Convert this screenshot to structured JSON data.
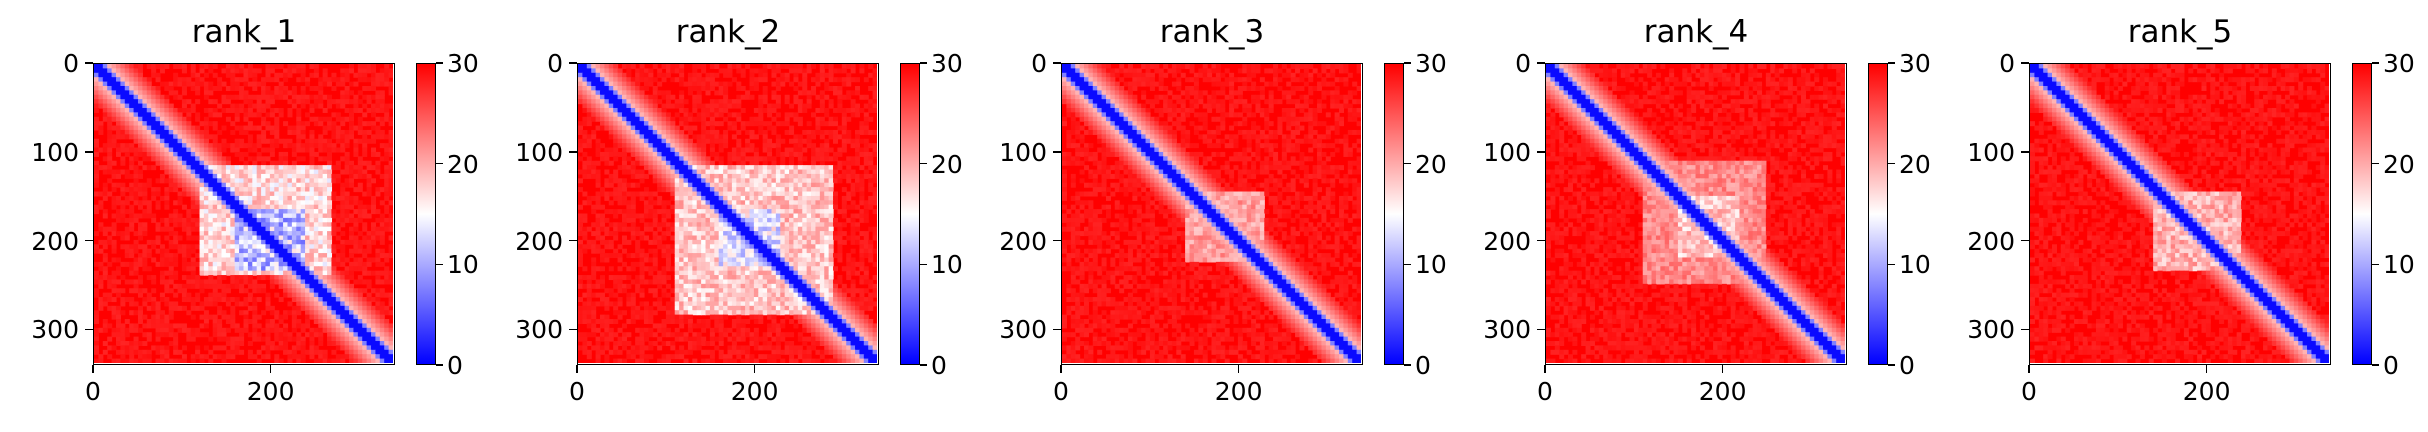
{
  "chart_data": [
    {
      "type": "heatmap",
      "title": "rank_1",
      "n": 340,
      "x_ticks": [
        0,
        200
      ],
      "y_ticks": [
        0,
        100,
        200,
        300
      ],
      "colorbar": {
        "min": 0,
        "max": 30,
        "ticks": [
          0,
          10,
          20,
          30
        ],
        "colormap": [
          "#0000ff",
          "#ffffff",
          "#ff0000"
        ]
      },
      "low_regions": [
        {
          "x_range": [
            120,
            270
          ],
          "y_range": [
            115,
            240
          ],
          "level": 0.55
        },
        {
          "x_range": [
            160,
            240
          ],
          "y_range": [
            165,
            235
          ],
          "level": 0.8
        }
      ]
    },
    {
      "type": "heatmap",
      "title": "rank_2",
      "n": 340,
      "x_ticks": [
        0,
        200
      ],
      "y_ticks": [
        0,
        100,
        200,
        300
      ],
      "colorbar": {
        "min": 0,
        "max": 30,
        "ticks": [
          0,
          10,
          20,
          30
        ],
        "colormap": [
          "#0000ff",
          "#ffffff",
          "#ff0000"
        ]
      },
      "low_regions": [
        {
          "x_range": [
            110,
            290
          ],
          "y_range": [
            115,
            285
          ],
          "level": 0.5
        },
        {
          "x_range": [
            160,
            230
          ],
          "y_range": [
            165,
            230
          ],
          "level": 0.7
        }
      ]
    },
    {
      "type": "heatmap",
      "title": "rank_3",
      "n": 340,
      "x_ticks": [
        0,
        200
      ],
      "y_ticks": [
        0,
        100,
        200,
        300
      ],
      "colorbar": {
        "min": 0,
        "max": 30,
        "ticks": [
          0,
          10,
          20,
          30
        ],
        "colormap": [
          "#0000ff",
          "#ffffff",
          "#ff0000"
        ]
      },
      "low_regions": [
        {
          "x_range": [
            140,
            230
          ],
          "y_range": [
            145,
            225
          ],
          "level": 0.4
        }
      ]
    },
    {
      "type": "heatmap",
      "title": "rank_4",
      "n": 340,
      "x_ticks": [
        0,
        200
      ],
      "y_ticks": [
        0,
        100,
        200,
        300
      ],
      "colorbar": {
        "min": 0,
        "max": 30,
        "ticks": [
          0,
          10,
          20,
          30
        ],
        "colormap": [
          "#0000ff",
          "#ffffff",
          "#ff0000"
        ]
      },
      "low_regions": [
        {
          "x_range": [
            110,
            250
          ],
          "y_range": [
            110,
            250
          ],
          "level": 0.35
        },
        {
          "x_range": [
            150,
            220
          ],
          "y_range": [
            150,
            220
          ],
          "level": 0.5
        }
      ]
    },
    {
      "type": "heatmap",
      "title": "rank_5",
      "n": 340,
      "x_ticks": [
        0,
        200
      ],
      "y_ticks": [
        0,
        100,
        200,
        300
      ],
      "colorbar": {
        "min": 0,
        "max": 30,
        "ticks": [
          0,
          10,
          20,
          30
        ],
        "colormap": [
          "#0000ff",
          "#ffffff",
          "#ff0000"
        ]
      },
      "low_regions": [
        {
          "x_range": [
            140,
            240
          ],
          "y_range": [
            145,
            235
          ],
          "level": 0.45
        }
      ]
    }
  ]
}
